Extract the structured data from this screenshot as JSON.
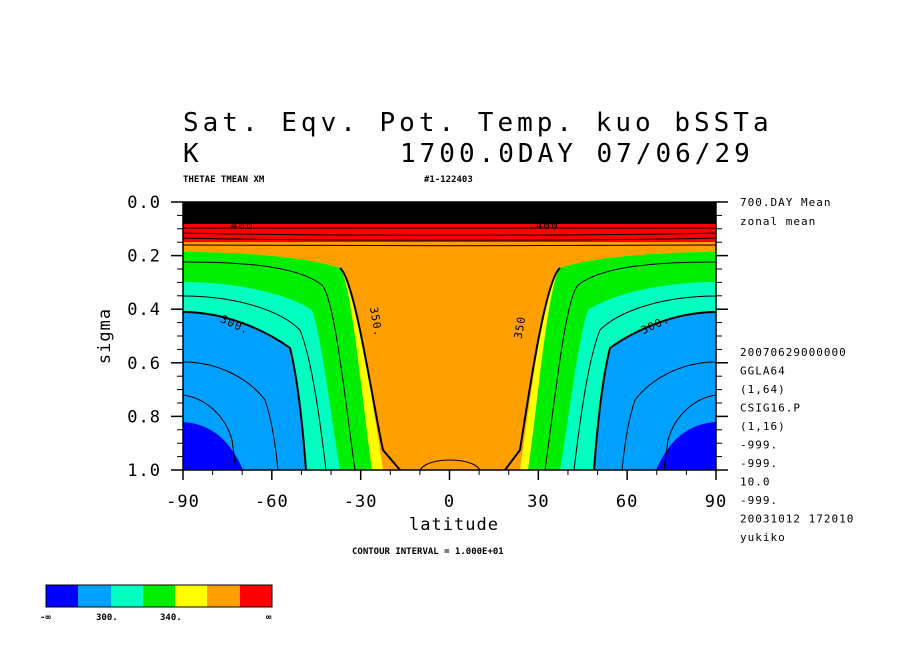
{
  "title_line1": "Sat. Eqv. Pot. Temp. kuo bSSTa",
  "unit": "K",
  "title_line2_right": "1700.0DAY 07/06/29",
  "var_label": "THETAE TMEAN XM",
  "run_id": "#1-122403",
  "contour_interval": "CONTOUR INTERVAL = 1.000E+01",
  "right_info": {
    "mean": "700.DAY Mean",
    "zonal": "zonal mean",
    "lines": [
      "20070629000000",
      "GGLA64",
      "(1,64)",
      "CSIG16.P",
      "(1,16)",
      "-999.",
      "-999.",
      "10.0",
      "-999.",
      "20031012 172010",
      "yukiko"
    ]
  },
  "colors": {
    "blue": "#0000ff",
    "lightblue": "#00a0ff",
    "aqua": "#00ffc0",
    "green": "#00ee00",
    "yellow": "#ffff00",
    "orange": "#ffa000",
    "red": "#ff0000",
    "dark": "#000000"
  },
  "chart_data": {
    "type": "contour",
    "xlabel": "latitude",
    "ylabel": "sigma",
    "xlim": [
      -90,
      90
    ],
    "ylim": [
      1.0,
      0.0
    ],
    "x_ticks": [
      "-90",
      "-60",
      "-30",
      "0",
      "30",
      "60",
      "90"
    ],
    "y_ticks": [
      "0.0",
      "0.2",
      "0.4",
      "0.6",
      "0.8",
      "1.0"
    ],
    "contour_labels": [
      {
        "text": "300.",
        "lat": -73,
        "sigma": 0.47
      },
      {
        "text": "350.",
        "lat": -26,
        "sigma": 0.45
      },
      {
        "text": "350",
        "lat": 25,
        "sigma": 0.47
      },
      {
        "text": "300.",
        "lat": 70,
        "sigma": 0.47
      },
      {
        "text": "400",
        "lat": -70,
        "sigma": 0.1
      },
      {
        "text": "400",
        "lat": 33,
        "sigma": 0.1
      }
    ],
    "colorbar_labels": [
      "-∞",
      "300.",
      "340.",
      "∞"
    ]
  }
}
